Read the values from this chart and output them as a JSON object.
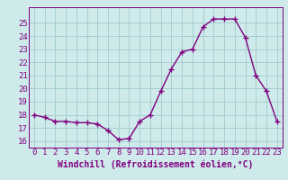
{
  "x": [
    0,
    1,
    2,
    3,
    4,
    5,
    6,
    7,
    8,
    9,
    10,
    11,
    12,
    13,
    14,
    15,
    16,
    17,
    18,
    19,
    20,
    21,
    22,
    23
  ],
  "y": [
    18.0,
    17.8,
    17.5,
    17.5,
    17.4,
    17.4,
    17.3,
    16.8,
    16.1,
    16.2,
    17.5,
    18.0,
    19.8,
    21.5,
    22.8,
    23.0,
    24.7,
    25.3,
    25.3,
    25.3,
    23.9,
    21.0,
    19.8,
    17.5
  ],
  "line_color": "#800080",
  "marker": "+",
  "markersize": 4,
  "linewidth": 1.0,
  "bg_color": "#ceeaea",
  "grid_color": "#a0cccc",
  "xlabel": "Windchill (Refroidissement éolien,°C)",
  "xlabel_fontsize": 7,
  "tick_fontsize": 6.5,
  "ylim": [
    15.5,
    26.2
  ],
  "xlim": [
    -0.5,
    23.5
  ],
  "yticks": [
    16,
    17,
    18,
    19,
    20,
    21,
    22,
    23,
    24,
    25
  ],
  "xticks": [
    0,
    1,
    2,
    3,
    4,
    5,
    6,
    7,
    8,
    9,
    10,
    11,
    12,
    13,
    14,
    15,
    16,
    17,
    18,
    19,
    20,
    21,
    22,
    23
  ]
}
